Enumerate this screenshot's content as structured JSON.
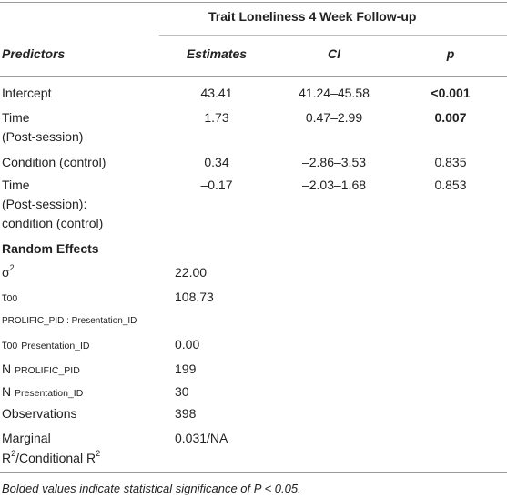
{
  "header": {
    "outcome": "Trait Loneliness 4 Week Follow-up",
    "columns": [
      "Predictors",
      "Estimates",
      "CI",
      "p"
    ]
  },
  "rows": [
    {
      "predictor": "Intercept",
      "estimate": "43.41",
      "ci": "41.24–45.58",
      "p": "<0.001"
    },
    {
      "predictor_line1": "Time",
      "predictor_line2": "(Post-session)",
      "estimate": "1.73",
      "ci": "0.47–2.99",
      "p": "0.007"
    },
    {
      "predictor": "Condition (control)",
      "estimate": "0.34",
      "ci": "–2.86–3.53",
      "p": "0.835"
    },
    {
      "predictor_line1": "Time",
      "predictor_line2": "(Post-session):",
      "predictor_line3": "condition (control)",
      "estimate": "–0.17",
      "ci": "–2.03–1.68",
      "p": "0.853"
    }
  ],
  "random_effects": {
    "title": "Random Effects",
    "rows": [
      {
        "symbol": "σ",
        "sup": "2",
        "value": "22.00"
      },
      {
        "symbol": "τ",
        "sub": "00",
        "group": "PROLIFIC_PID : Presentation_ID",
        "value": "108.73"
      },
      {
        "symbol": "τ",
        "sub": "00",
        "group": "Presentation_ID",
        "value": "0.00"
      },
      {
        "symbol": "N",
        "sub": "PROLIFIC_PID",
        "value": "199"
      },
      {
        "symbol": "N",
        "sub": "Presentation_ID",
        "value": "30"
      },
      {
        "label": "Observations",
        "value": "398"
      },
      {
        "label_line1": "Marginal",
        "label_line2a": "R",
        "label_line2b": "/Conditional R",
        "value": "0.031/NA"
      }
    ]
  },
  "footnote": "Bolded values indicate statistical significance of P < 0.05."
}
